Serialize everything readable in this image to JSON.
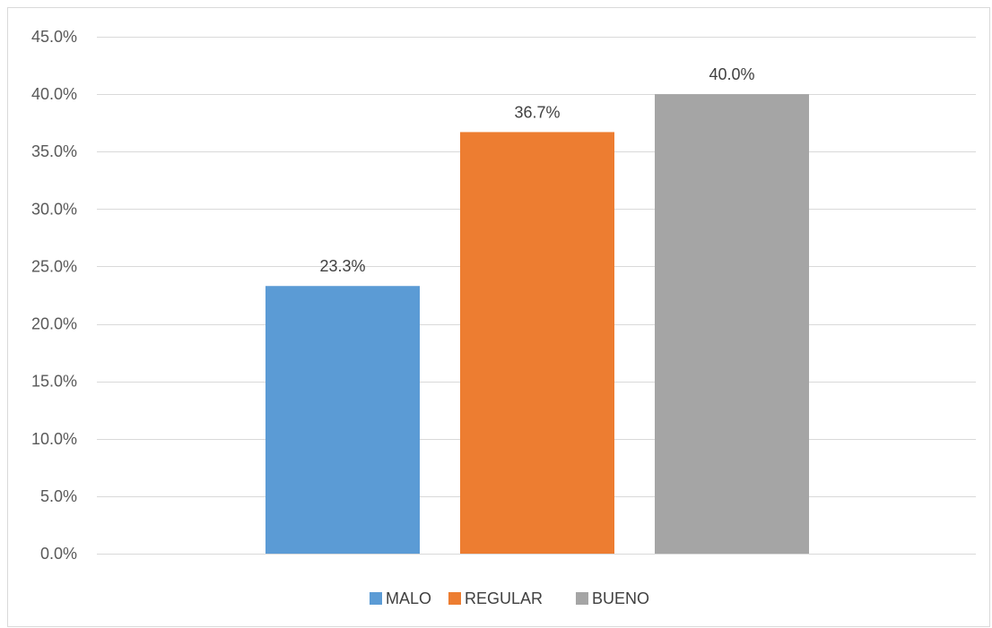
{
  "chart_data": {
    "type": "bar",
    "categories": [
      "MALO",
      "REGULAR",
      "BUENO"
    ],
    "values": [
      23.3,
      36.7,
      40.0
    ],
    "value_labels": [
      "23.3%",
      "36.7%",
      "40.0%"
    ],
    "colors": [
      "#5b9bd5",
      "#ed7d31",
      "#a5a5a5"
    ],
    "title": "",
    "xlabel": "",
    "ylabel": "",
    "ylim": [
      0,
      45
    ],
    "yticks": [
      0,
      5,
      10,
      15,
      20,
      25,
      30,
      35,
      40,
      45
    ],
    "ytick_labels": [
      "0.0%",
      "5.0%",
      "10.0%",
      "15.0%",
      "20.0%",
      "25.0%",
      "30.0%",
      "35.0%",
      "40.0%",
      "45.0%"
    ],
    "grid": true,
    "gridline_color": "#d9d9d9",
    "legend": {
      "position": "bottom",
      "entries": [
        "MALO",
        "REGULAR",
        "BUENO"
      ]
    }
  }
}
